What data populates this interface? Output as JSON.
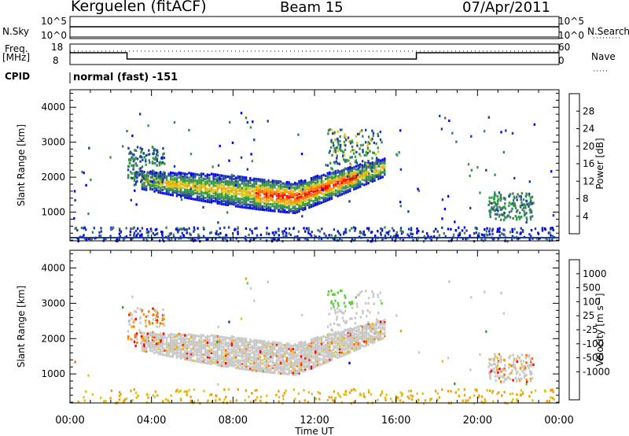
{
  "header": {
    "station": "Kerguelen (fitACF)",
    "beam": "Beam 15",
    "date": "07/Apr/2011"
  },
  "nsky_panel": {
    "left_label": "N.Sky",
    "right_label": "N.Search",
    "left_ticks": [
      "10^5",
      "10^0"
    ],
    "right_ticks": [
      "10^5",
      "10^0"
    ]
  },
  "freq_panel": {
    "left_label_line1": "Freq.",
    "left_label_line2": "[MHz]",
    "right_label": "Nave",
    "left_ticks": [
      "18",
      "8"
    ],
    "right_ticks": [
      "60",
      "0"
    ]
  },
  "cpid": {
    "label": "CPID",
    "value": "normal (fast) -151"
  },
  "colors": {
    "power_scale": [
      "#0000ff",
      "#1f3f9f",
      "#3f7f5f",
      "#2f9f3f",
      "#d7c71f",
      "#f79f00",
      "#ff6f00",
      "#ff0000"
    ],
    "velocity_scale": [
      "#ff0000",
      "#ff6f00",
      "#f79f00",
      "#d7c71f",
      "#c8c8c8",
      "#c8c8c8",
      "#66cc44",
      "#2f9f3f",
      "#1f3f9f",
      "#0000ff"
    ],
    "ground_scatter": "#c8c8c8"
  },
  "chart_data": [
    {
      "type": "heatmap",
      "title": "",
      "xlabel": "",
      "ylabel": "Slant Range [km]",
      "xlim": [
        0,
        24
      ],
      "ylim": [
        180,
        4500
      ],
      "y_ticks": [
        "1000",
        "2000",
        "3000",
        "4000"
      ],
      "colorbar": {
        "label": "Power [dB]",
        "ticks": [
          "4",
          "8",
          "12",
          "16",
          "20",
          "24",
          "28"
        ],
        "range": [
          0,
          30
        ]
      },
      "features": [
        {
          "name": "main-echo-band",
          "time_start": 3.5,
          "time_end": 15.5,
          "range_center_start": 1950,
          "range_center_mid": 1450,
          "range_center_end": 2000,
          "peak_power": 24
        },
        {
          "name": "near-range-echoes",
          "time_start": 0,
          "time_end": 24,
          "range_center": 350,
          "peak_power": 8
        },
        {
          "name": "late-patch",
          "time_start": 20.5,
          "time_end": 22.8,
          "range_center": 1100,
          "peak_power": 10
        }
      ]
    },
    {
      "type": "heatmap",
      "title": "",
      "xlabel": "Time UT",
      "ylabel": "Slant Range [km]",
      "xlim": [
        0,
        24
      ],
      "ylim": [
        180,
        4500
      ],
      "x_ticks": [
        "00:00",
        "04:00",
        "08:00",
        "12:00",
        "16:00",
        "20:00",
        "00:00"
      ],
      "y_ticks": [
        "1000",
        "2000",
        "3000",
        "4000"
      ],
      "colorbar": {
        "label": "Velocity [m s⁻¹]",
        "ticks": [
          "1000",
          "500",
          "100",
          "25",
          "-25",
          "-100",
          "-500",
          "-1000"
        ]
      },
      "features": [
        {
          "name": "ground-scatter-band",
          "time_start": 3.5,
          "time_end": 15.5,
          "velocity": 0
        },
        {
          "name": "positive-velocity-patch",
          "time_start": 13.0,
          "time_end": 14.0,
          "range_center": 3200,
          "velocity": 150
        },
        {
          "name": "negative-velocity-patch",
          "time_start": 2.8,
          "time_end": 4.5,
          "range_center": 2300,
          "velocity": -200
        },
        {
          "name": "late-ground-scatter",
          "time_start": 20.5,
          "time_end": 22.8,
          "range_center": 1150,
          "velocity": -50
        }
      ]
    }
  ]
}
